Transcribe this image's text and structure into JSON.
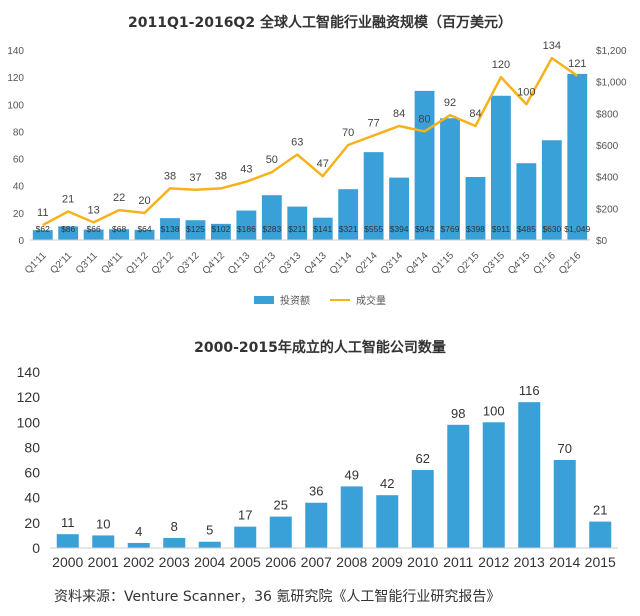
{
  "chart_data": [
    {
      "type": "bar",
      "title": "2011Q1-2016Q2 全球人工智能行业融资规模（百万美元）",
      "categories": [
        "Q1'11",
        "Q2'11",
        "Q3'11",
        "Q4'11",
        "Q1'12",
        "Q2'12",
        "Q3'12",
        "Q4'12",
        "Q1'13",
        "Q2'13",
        "Q3'13",
        "Q4'13",
        "Q1'14",
        "Q2'14",
        "Q3'14",
        "Q4'14",
        "Q1'15",
        "Q2'15",
        "Q3'15",
        "Q4'15",
        "Q1'16",
        "Q2'16"
      ],
      "y_left_ticks": [
        "0",
        "20",
        "40",
        "60",
        "80",
        "100",
        "120",
        "140"
      ],
      "y_right_ticks": [
        "$0",
        "$200",
        "$400",
        "$600",
        "$800",
        "$1,000",
        "$1,200"
      ],
      "ylim_left": [
        0,
        140
      ],
      "ylim_right": [
        0,
        1200
      ],
      "series": [
        {
          "name": "投资额",
          "type": "bar",
          "axis": "right",
          "color": "#3aa0d8",
          "values": [
            62,
            86,
            66,
            68,
            64,
            138,
            125,
            102,
            186,
            283,
            211,
            141,
            321,
            555,
            394,
            942,
            769,
            398,
            911,
            485,
            630,
            1049
          ],
          "labels": [
            "$62",
            "$86",
            "$66",
            "$68",
            "$64",
            "$138",
            "$125",
            "$102",
            "$186",
            "$283",
            "$211",
            "$141",
            "$321",
            "$555",
            "$394",
            "$942",
            "$769",
            "$398",
            "$911",
            "$485",
            "$630",
            "$1,049"
          ]
        },
        {
          "name": "成交量",
          "type": "line",
          "axis": "left",
          "color": "#f5b21b",
          "values": [
            11,
            21,
            13,
            22,
            20,
            38,
            37,
            38,
            43,
            50,
            63,
            47,
            70,
            77,
            84,
            80,
            92,
            84,
            120,
            100,
            134,
            121
          ]
        }
      ],
      "legend_position": "bottom",
      "grid": false
    },
    {
      "type": "bar",
      "title": "2000-2015年成立的人工智能公司数量",
      "categories": [
        "2000",
        "2001",
        "2002",
        "2003",
        "2004",
        "2005",
        "2006",
        "2007",
        "2008",
        "2009",
        "2010",
        "2011",
        "2012",
        "2013",
        "2014",
        "2015"
      ],
      "values": [
        11,
        10,
        4,
        8,
        5,
        17,
        25,
        36,
        49,
        42,
        62,
        98,
        100,
        116,
        70,
        21
      ],
      "y_ticks": [
        "0",
        "20",
        "40",
        "60",
        "80",
        "100",
        "120",
        "140"
      ],
      "ylim": [
        0,
        140
      ],
      "color": "#3aa0d8",
      "grid": false
    }
  ],
  "source_text": "资料来源：Venture Scanner，36 氪研究院《人工智能行业研究报告》"
}
